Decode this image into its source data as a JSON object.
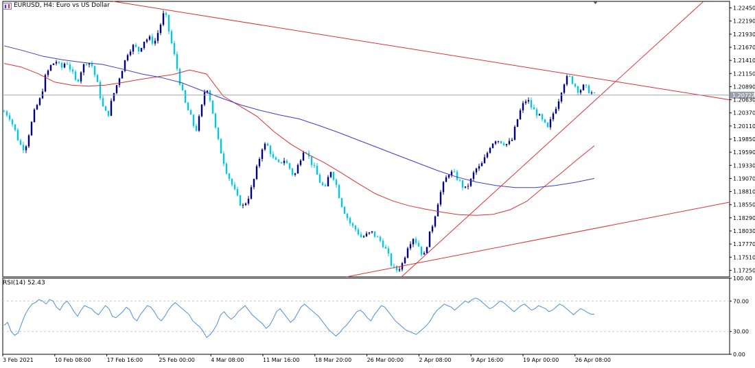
{
  "window": {
    "title": "EURUSD, H4:  Euro vs US Dollar"
  },
  "colors": {
    "candle": "#000080",
    "candle_alt": "#00c8e6",
    "ma_fast": "#e03030",
    "ma_slow": "#3c3cc8",
    "trendline": "#e03030",
    "rsi": "#4a8fd8",
    "price_label_bg": "#9aa0aa"
  },
  "chart_data": [
    {
      "type": "candlestick",
      "title": "EURUSD, H4:  Euro vs US Dollar",
      "ylim": [
        1.1712,
        1.2258
      ],
      "y_ticks": [
        "1.22450",
        "1.22190",
        "1.21930",
        "1.21670",
        "1.21410",
        "1.21150",
        "1.20890",
        "1.20630",
        "1.20370",
        "1.20110",
        "1.19850",
        "1.19590",
        "1.19330",
        "1.19070",
        "1.18810",
        "1.18550",
        "1.18290",
        "1.18030",
        "1.17770",
        "1.17510",
        "1.17250"
      ],
      "x_ticks": [
        "3 Feb 2021",
        "10 Feb 08:00",
        "17 Feb 16:00",
        "25 Feb 00:00",
        "4 Mar 08:00",
        "11 Mar 16:00",
        "18 Mar 20:00",
        "26 Mar 00:00",
        "2 Apr 08:00",
        "9 Apr 16:00",
        "19 Apr 00:00",
        "26 Apr 08:00"
      ],
      "current_price": "1.20722",
      "close_path": [
        1.204,
        1.203,
        1.2005,
        1.1975,
        1.1965,
        1.2005,
        1.2045,
        1.2065,
        1.211,
        1.213,
        1.214,
        1.2125,
        1.214,
        1.212,
        1.2095,
        1.2125,
        1.214,
        1.213,
        1.2095,
        1.205,
        1.203,
        1.207,
        1.21,
        1.213,
        1.216,
        1.217,
        1.216,
        1.218,
        1.2185,
        1.2175,
        1.2205,
        1.224,
        1.219,
        1.2145,
        1.2095,
        1.2055,
        1.203,
        1.2,
        1.204,
        1.2095,
        1.2055,
        1.1995,
        1.1955,
        1.192,
        1.1895,
        1.187,
        1.185,
        1.1865,
        1.1895,
        1.1935,
        1.1975,
        1.197,
        1.1945,
        1.1935,
        1.1945,
        1.193,
        1.191,
        1.194,
        1.197,
        1.1945,
        1.1925,
        1.19,
        1.1885,
        1.1925,
        1.19,
        1.186,
        1.1835,
        1.1815,
        1.1805,
        1.179,
        1.1795,
        1.18,
        1.179,
        1.178,
        1.176,
        1.173,
        1.1725,
        1.174,
        1.1775,
        1.179,
        1.1775,
        1.175,
        1.179,
        1.1825,
        1.187,
        1.19,
        1.192,
        1.1915,
        1.19,
        1.1885,
        1.19,
        1.1925,
        1.193,
        1.195,
        1.1975,
        1.1985,
        1.198,
        1.1975,
        1.198,
        1.202,
        1.205,
        1.2065,
        1.2045,
        1.2035,
        1.202,
        1.2005,
        1.2035,
        1.206,
        1.2095,
        1.211,
        1.2095,
        1.208,
        1.209,
        1.208,
        1.2072
      ],
      "ma_fast": [
        1.2135,
        1.2128,
        1.2115,
        1.2098,
        1.2092,
        1.209,
        1.2092,
        1.2097,
        1.2103,
        1.2108,
        1.2113,
        1.2122,
        1.2114,
        1.207,
        1.205,
        1.203,
        1.2,
        1.1975,
        1.1955,
        1.1938,
        1.1918,
        1.1897,
        1.1877,
        1.1863,
        1.1853,
        1.1846,
        1.184,
        1.1835,
        1.1834,
        1.1836,
        1.1845,
        1.1862,
        1.189,
        1.1917,
        1.1945,
        1.1972
      ],
      "ma_slow": [
        1.217,
        1.216,
        1.2149,
        1.2142,
        1.2137,
        1.2133,
        1.2124,
        1.2114,
        1.2107,
        1.2097,
        1.2082,
        1.2067,
        1.2053,
        1.2042,
        1.2033,
        1.2025,
        1.2012,
        1.1998,
        1.1983,
        1.1968,
        1.1953,
        1.1938,
        1.1923,
        1.191,
        1.19,
        1.1893,
        1.1889,
        1.1889,
        1.1893,
        1.1899,
        1.1907
      ],
      "rsi": {
        "label": "RSI(14) 52.43",
        "ylim": [
          0,
          100
        ],
        "ticks": [
          "100.00",
          "70.00",
          "30.00",
          "0.00"
        ],
        "levels": [
          70,
          30
        ],
        "values": [
          38,
          42,
          30,
          25,
          28,
          40,
          52,
          60,
          66,
          68,
          72,
          70,
          66,
          72,
          70,
          62,
          58,
          66,
          70,
          64,
          56,
          50,
          58,
          64,
          62,
          60,
          55,
          52,
          58,
          64,
          60,
          50,
          48,
          52,
          56,
          62,
          58,
          48,
          44,
          52,
          58,
          64,
          62,
          56,
          48,
          44,
          50,
          58,
          64,
          68,
          64,
          60,
          56,
          52,
          44,
          40,
          36,
          30,
          22,
          26,
          32,
          40,
          52,
          56,
          50,
          46,
          50,
          56,
          60,
          64,
          58,
          52,
          48,
          44,
          40,
          34,
          38,
          46,
          56,
          60,
          54,
          48,
          42,
          46,
          54,
          62,
          66,
          62,
          58,
          54,
          50,
          44,
          38,
          32,
          28,
          24,
          28,
          34,
          38,
          44,
          50,
          56,
          58,
          54,
          48,
          44,
          52,
          58,
          64,
          62,
          56,
          50,
          44,
          40,
          36,
          32,
          30,
          28,
          26,
          30,
          34,
          38,
          44,
          52,
          58,
          62,
          66,
          64,
          62,
          58,
          62,
          66,
          70,
          68,
          72,
          74,
          72,
          68,
          64,
          60,
          62,
          66,
          70,
          68,
          64,
          60,
          56,
          60,
          64,
          66,
          62,
          58,
          60,
          64,
          62,
          60,
          56,
          58,
          62,
          66,
          64,
          60,
          56,
          52,
          56,
          60,
          58,
          55,
          53,
          52.43
        ]
      },
      "trendlines": [
        {
          "name": "upper-resistance",
          "color": "#e03030"
        },
        {
          "name": "steep-support",
          "color": "#e03030"
        },
        {
          "name": "lower-support",
          "color": "#e03030"
        }
      ]
    }
  ]
}
